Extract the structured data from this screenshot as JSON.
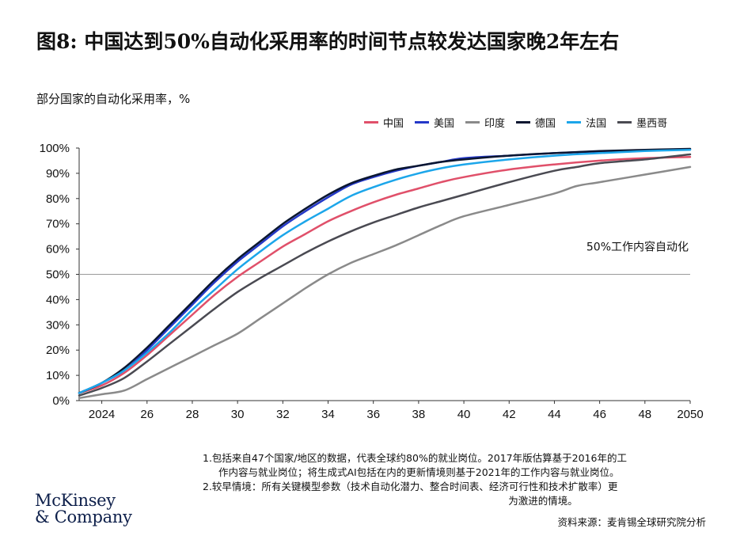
{
  "header": {
    "title": "图8: 中国达到50%自动化采用率的时间节点较发达国家晚2年左右",
    "subtitle": "部分国家的自动化采用率，%"
  },
  "chart_data": {
    "type": "line",
    "x_ticks": [
      "2024",
      "26",
      "28",
      "30",
      "32",
      "34",
      "36",
      "38",
      "40",
      "42",
      "44",
      "46",
      "48",
      "2050"
    ],
    "xlim": [
      2023,
      2050
    ],
    "ylim": [
      0,
      100
    ],
    "y_ticks": [
      "0%",
      "10%",
      "20%",
      "30%",
      "40%",
      "50%",
      "60%",
      "70%",
      "80%",
      "90%",
      "100%"
    ],
    "reference_line": {
      "y": 50,
      "label": "50%工作内容自动化"
    },
    "series": [
      {
        "name": "中国",
        "color": "#e0506a",
        "x": [
          2023,
          2024,
          2025,
          2026,
          2027,
          2028,
          2029,
          2030,
          2031,
          2032,
          2033,
          2034,
          2035,
          2036,
          2037,
          2038,
          2039,
          2040,
          2042,
          2044,
          2046,
          2048,
          2050
        ],
        "y": [
          3,
          6,
          11,
          18,
          26,
          34,
          42,
          49,
          55,
          61,
          66,
          71,
          75,
          78.5,
          81.5,
          84,
          86.5,
          88.5,
          91.5,
          93.5,
          95,
          96,
          96.5
        ]
      },
      {
        "name": "美国",
        "color": "#2438c8",
        "x": [
          2023,
          2024,
          2025,
          2026,
          2027,
          2028,
          2029,
          2030,
          2031,
          2032,
          2033,
          2034,
          2035,
          2036,
          2037,
          2038,
          2039,
          2040,
          2042,
          2044,
          2046,
          2048,
          2050
        ],
        "y": [
          3,
          7,
          12,
          20,
          29,
          38,
          47,
          55,
          62,
          69,
          75,
          80.5,
          85.5,
          88.5,
          91,
          93,
          94.5,
          96,
          97,
          98,
          98.7,
          99.2,
          99.6
        ]
      },
      {
        "name": "印度",
        "color": "#8a8a8a",
        "x": [
          2023,
          2024,
          2025,
          2026,
          2027,
          2028,
          2029,
          2030,
          2031,
          2032,
          2033,
          2034,
          2035,
          2036,
          2037,
          2038,
          2039,
          2040,
          2042,
          2044,
          2045,
          2046,
          2048,
          2050
        ],
        "y": [
          1,
          2.5,
          4,
          8.5,
          13,
          17.5,
          22,
          26.5,
          32.5,
          38.5,
          44.5,
          50,
          54.5,
          58,
          61.5,
          65.5,
          69.5,
          73,
          77.5,
          82,
          85,
          86.5,
          89.5,
          92.5
        ]
      },
      {
        "name": "德国",
        "color": "#0a1630",
        "x": [
          2023,
          2024,
          2025,
          2026,
          2027,
          2028,
          2029,
          2030,
          2031,
          2032,
          2033,
          2034,
          2035,
          2036,
          2037,
          2038,
          2039,
          2040,
          2042,
          2044,
          2046,
          2048,
          2050
        ],
        "y": [
          3,
          7,
          13,
          21,
          30,
          39,
          48,
          56,
          63,
          70,
          76,
          81.5,
          86,
          89,
          91.5,
          93,
          94.5,
          95.5,
          97,
          98,
          98.8,
          99.3,
          99.7
        ]
      },
      {
        "name": "法国",
        "color": "#1ca6ea",
        "x": [
          2023,
          2024,
          2025,
          2026,
          2027,
          2028,
          2029,
          2030,
          2031,
          2032,
          2033,
          2034,
          2035,
          2036,
          2037,
          2038,
          2039,
          2040,
          2042,
          2044,
          2046,
          2048,
          2050
        ],
        "y": [
          3,
          7,
          12,
          19,
          27,
          36,
          44,
          52,
          59,
          65.5,
          71,
          76,
          81,
          84.5,
          87.5,
          90,
          92,
          93.5,
          95.5,
          97,
          98,
          98.8,
          99.3
        ]
      },
      {
        "name": "墨西哥",
        "color": "#4a4a52",
        "x": [
          2023,
          2024,
          2025,
          2026,
          2027,
          2028,
          2029,
          2030,
          2031,
          2032,
          2033,
          2034,
          2035,
          2036,
          2037,
          2038,
          2039,
          2040,
          2042,
          2044,
          2045,
          2046,
          2048,
          2050
        ],
        "y": [
          2,
          5,
          9,
          15.5,
          22.5,
          29.5,
          36.5,
          43,
          48.5,
          53.5,
          58.5,
          63,
          67,
          70.5,
          73.5,
          76.5,
          79,
          81.5,
          86.5,
          91,
          92.5,
          94,
          95.5,
          97.5
        ]
      }
    ]
  },
  "notes": {
    "note1_line1": "1.包括来自47个国家/地区的数据，代表全球约80%的就业岗位。2017年版估算基于2016年的工",
    "note1_line2": "作内容与就业岗位；将生成式AI包括在内的更新情境则基于2021年的工作内容与就业岗位。",
    "note2_line1": "2.较早情境：所有关键模型参数（技术自动化潜力、整合时间表、经济可行性和技术扩散率）更",
    "note2_line2": "为激进的情境。",
    "source": "资料来源：麦肯锡全球研究院分析"
  },
  "logo": {
    "line1": "McKinsey",
    "line2": "& Company"
  }
}
